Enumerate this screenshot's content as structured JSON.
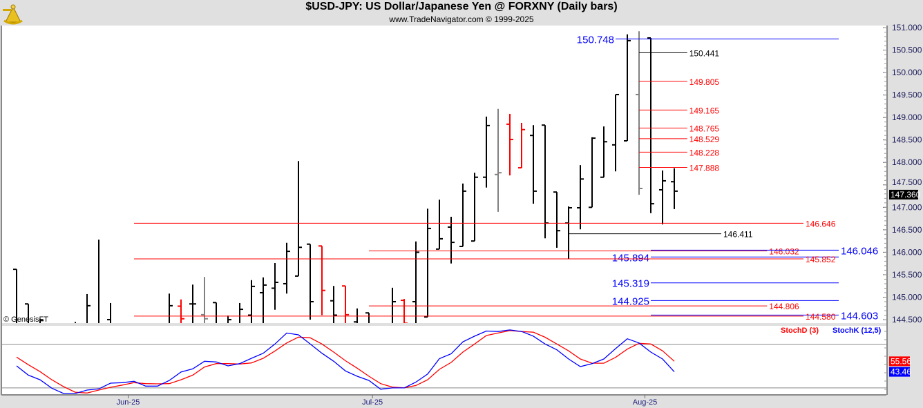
{
  "header": {
    "title": "$USD-JPY:  US Dollar/Japanese Yen @ FORXNY  (Daily bars)",
    "subtitle": "www.TradeNavigator.com © 1999-2025",
    "logo_text": "Trade Navigator"
  },
  "copyright": "© GenesisFT",
  "colors": {
    "red": "#ff0000",
    "blue": "#0000ff",
    "black": "#000000",
    "gray": "#808080"
  },
  "chart_data": {
    "type": "bar",
    "title": "$USD-JPY:  US Dollar/Japanese Yen @ FORXNY  (Daily bars)",
    "ylim": [
      144.42,
      151.05
    ],
    "y_ticks": [
      "151.000",
      "150.500",
      "150.000",
      "149.500",
      "149.000",
      "148.500",
      "148.000",
      "147.500",
      "147.000",
      "146.500",
      "146.000",
      "145.500",
      "145.000",
      "144.500"
    ],
    "last_price": "147.360",
    "x_labels": [
      {
        "label": "Jun-25",
        "bar": 9.5
      },
      {
        "label": "Jul-25",
        "bar": 30.3
      },
      {
        "label": "Aug-25",
        "bar": 53.5
      }
    ],
    "bars": [
      {
        "o": 145.62,
        "h": 145.62,
        "l": 144.0,
        "c": 144.3,
        "col": "black"
      },
      {
        "o": 144.85,
        "h": 144.85,
        "l": 143.9,
        "c": 144.2,
        "col": "black"
      },
      {
        "o": 144.3,
        "h": 144.52,
        "l": 144.0,
        "c": 144.48,
        "col": "black"
      },
      {
        "o": 144.0,
        "h": 144.3,
        "l": 143.6,
        "c": 143.8,
        "col": "black"
      },
      {
        "o": 143.8,
        "h": 144.2,
        "l": 143.5,
        "c": 144.1,
        "col": "black"
      },
      {
        "o": 144.0,
        "h": 144.45,
        "l": 143.8,
        "c": 144.3,
        "col": "black"
      },
      {
        "o": 144.2,
        "h": 145.07,
        "l": 144.0,
        "c": 144.81,
        "col": "black"
      },
      {
        "o": 144.3,
        "h": 146.28,
        "l": 144.0,
        "c": 144.2,
        "col": "black"
      },
      {
        "o": 144.5,
        "h": 144.87,
        "l": 143.9,
        "c": 144.1,
        "col": "black"
      },
      {
        "o": 144.0,
        "h": 144.3,
        "l": 143.6,
        "c": 143.9,
        "col": "black"
      },
      {
        "o": 143.8,
        "h": 144.2,
        "l": 143.4,
        "c": 144.0,
        "col": "black"
      },
      {
        "o": 143.9,
        "h": 144.3,
        "l": 143.6,
        "c": 144.1,
        "col": "black"
      },
      {
        "o": 144.1,
        "h": 144.35,
        "l": 143.7,
        "c": 144.2,
        "col": "black"
      },
      {
        "o": 144.2,
        "h": 145.08,
        "l": 144.0,
        "c": 144.81,
        "col": "black"
      },
      {
        "o": 144.8,
        "h": 144.95,
        "l": 144.1,
        "c": 144.52,
        "col": "red"
      },
      {
        "o": 144.85,
        "h": 145.28,
        "l": 144.2,
        "c": 144.85,
        "col": "black"
      },
      {
        "o": 144.61,
        "h": 145.45,
        "l": 144.2,
        "c": 144.52,
        "col": "gray"
      },
      {
        "o": 144.88,
        "h": 144.88,
        "l": 144.0,
        "c": 144.4,
        "col": "black"
      },
      {
        "o": 144.3,
        "h": 144.59,
        "l": 144.0,
        "c": 144.5,
        "col": "black"
      },
      {
        "o": 144.3,
        "h": 144.87,
        "l": 144.1,
        "c": 144.73,
        "col": "black"
      },
      {
        "o": 144.6,
        "h": 145.38,
        "l": 144.3,
        "c": 145.24,
        "col": "black"
      },
      {
        "o": 145.1,
        "h": 145.44,
        "l": 144.4,
        "c": 145.27,
        "col": "black"
      },
      {
        "o": 145.2,
        "h": 145.76,
        "l": 144.72,
        "c": 145.33,
        "col": "black"
      },
      {
        "o": 145.3,
        "h": 146.21,
        "l": 145.08,
        "c": 146.02,
        "col": "black"
      },
      {
        "o": 145.47,
        "h": 148.03,
        "l": 145.47,
        "c": 146.11,
        "col": "black"
      },
      {
        "o": 146.18,
        "h": 146.18,
        "l": 144.5,
        "c": 144.9,
        "col": "black"
      },
      {
        "o": 146.14,
        "h": 146.14,
        "l": 144.6,
        "c": 145.15,
        "col": "red"
      },
      {
        "o": 144.92,
        "h": 145.25,
        "l": 144.2,
        "c": 144.6,
        "col": "black"
      },
      {
        "o": 145.25,
        "h": 145.25,
        "l": 144.2,
        "c": 144.61,
        "col": "red"
      },
      {
        "o": 144.45,
        "h": 144.75,
        "l": 144.2,
        "c": 144.3,
        "col": "black"
      },
      {
        "o": 144.65,
        "h": 144.65,
        "l": 144.1,
        "c": 144.4,
        "col": "black"
      },
      {
        "o": 144.0,
        "h": 144.3,
        "l": 143.7,
        "c": 144.2,
        "col": "black"
      },
      {
        "o": 144.4,
        "h": 145.21,
        "l": 144.0,
        "c": 144.9,
        "col": "black"
      },
      {
        "o": 144.93,
        "h": 144.96,
        "l": 144.4,
        "c": 144.42,
        "col": "red"
      },
      {
        "o": 144.9,
        "h": 146.24,
        "l": 144.2,
        "c": 146.0,
        "col": "black"
      },
      {
        "o": 144.56,
        "h": 146.97,
        "l": 144.56,
        "c": 146.53,
        "col": "black"
      },
      {
        "o": 146.07,
        "h": 147.17,
        "l": 146.07,
        "c": 146.3,
        "col": "black"
      },
      {
        "o": 146.56,
        "h": 146.79,
        "l": 145.75,
        "c": 146.22,
        "col": "black"
      },
      {
        "o": 146.13,
        "h": 147.53,
        "l": 146.13,
        "c": 147.36,
        "col": "black"
      },
      {
        "o": 146.25,
        "h": 147.77,
        "l": 146.25,
        "c": 147.67,
        "col": "black"
      },
      {
        "o": 147.67,
        "h": 149.02,
        "l": 147.44,
        "c": 148.82,
        "col": "black"
      },
      {
        "o": 147.73,
        "h": 149.19,
        "l": 146.9,
        "c": 147.77,
        "col": "gray"
      },
      {
        "o": 148.85,
        "h": 149.08,
        "l": 147.71,
        "c": 148.51,
        "col": "red"
      },
      {
        "o": 147.88,
        "h": 148.88,
        "l": 147.88,
        "c": 148.73,
        "col": "red"
      },
      {
        "o": 148.6,
        "h": 148.83,
        "l": 147.08,
        "c": 147.36,
        "col": "black"
      },
      {
        "o": 148.83,
        "h": 148.83,
        "l": 146.31,
        "c": 146.65,
        "col": "black"
      },
      {
        "o": 147.34,
        "h": 147.34,
        "l": 146.1,
        "c": 146.48,
        "col": "black"
      },
      {
        "o": 146.65,
        "h": 147.02,
        "l": 145.85,
        "c": 146.99,
        "col": "black"
      },
      {
        "o": 146.99,
        "h": 147.94,
        "l": 146.51,
        "c": 147.63,
        "col": "black"
      },
      {
        "o": 147.0,
        "h": 148.56,
        "l": 147.0,
        "c": 148.54,
        "col": "black"
      },
      {
        "o": 147.67,
        "h": 148.8,
        "l": 147.67,
        "c": 148.46,
        "col": "black"
      },
      {
        "o": 148.39,
        "h": 149.51,
        "l": 147.8,
        "c": 149.51,
        "col": "black"
      },
      {
        "o": 148.48,
        "h": 150.85,
        "l": 148.48,
        "c": 150.71,
        "col": "black"
      },
      {
        "o": 149.51,
        "h": 150.92,
        "l": 147.28,
        "c": 147.42,
        "col": "gray"
      },
      {
        "o": 150.77,
        "h": 150.77,
        "l": 146.87,
        "c": 147.08,
        "col": "black"
      },
      {
        "o": 147.39,
        "h": 147.82,
        "l": 146.62,
        "c": 147.59,
        "col": "black"
      },
      {
        "o": 147.57,
        "h": 147.87,
        "l": 146.96,
        "c": 147.36,
        "col": "black"
      }
    ],
    "levels": [
      {
        "label": "150.748",
        "price": 150.748,
        "col": "blue",
        "from_bar": 51,
        "to_bar": 70,
        "side": "left",
        "size": "large"
      },
      {
        "label": "150.441",
        "price": 150.441,
        "col": "black",
        "from_bar": 53,
        "to_bar": 57.1,
        "side": "right",
        "size": "small"
      },
      {
        "label": "149.805",
        "price": 149.805,
        "col": "red",
        "from_bar": 53,
        "to_bar": 57.1,
        "side": "right",
        "size": "small"
      },
      {
        "label": "149.165",
        "price": 149.165,
        "col": "red",
        "from_bar": 53,
        "to_bar": 57.1,
        "side": "right",
        "size": "small"
      },
      {
        "label": "148.765",
        "price": 148.765,
        "col": "red",
        "from_bar": 53,
        "to_bar": 57.1,
        "side": "right",
        "size": "small"
      },
      {
        "label": "148.529",
        "price": 148.529,
        "col": "red",
        "from_bar": 53,
        "to_bar": 57.1,
        "side": "right",
        "size": "small"
      },
      {
        "label": "148.228",
        "price": 148.228,
        "col": "red",
        "from_bar": 53,
        "to_bar": 57.1,
        "side": "right",
        "size": "small"
      },
      {
        "label": "147.888",
        "price": 147.888,
        "col": "red",
        "from_bar": 53,
        "to_bar": 57.1,
        "side": "right",
        "size": "small"
      },
      {
        "label": "146.646",
        "price": 146.646,
        "col": "red",
        "from_bar": 10,
        "to_bar": 67,
        "side": "right",
        "size": "small"
      },
      {
        "label": "146.411",
        "price": 146.411,
        "col": "black",
        "from_bar": 47,
        "to_bar": 60,
        "side": "right",
        "size": "small"
      },
      {
        "label": "146.032",
        "price": 146.032,
        "col": "red",
        "from_bar": 30,
        "to_bar": 63.9,
        "side": "right",
        "size": "small"
      },
      {
        "label": "146.046",
        "price": 146.046,
        "col": "blue",
        "from_bar": 54,
        "to_bar": 70,
        "side": "right",
        "size": "large"
      },
      {
        "label": "145.894",
        "price": 145.894,
        "col": "blue",
        "from_bar": 54,
        "to_bar": 70,
        "side": "left",
        "size": "large"
      },
      {
        "label": "145.852",
        "price": 145.852,
        "col": "red",
        "from_bar": 10,
        "to_bar": 67,
        "side": "right",
        "size": "small"
      },
      {
        "label": "145.319",
        "price": 145.319,
        "col": "blue",
        "from_bar": 54,
        "to_bar": 70,
        "side": "left",
        "size": "large"
      },
      {
        "label": "144.925",
        "price": 144.925,
        "col": "blue",
        "from_bar": 54,
        "to_bar": 70,
        "side": "left",
        "size": "large"
      },
      {
        "label": "144.806",
        "price": 144.806,
        "col": "red",
        "from_bar": 30,
        "to_bar": 63.9,
        "side": "right",
        "size": "small"
      },
      {
        "label": "144.603",
        "price": 144.603,
        "col": "blue",
        "from_bar": 54,
        "to_bar": 70,
        "side": "right",
        "size": "large"
      },
      {
        "label": "144.580",
        "price": 144.58,
        "col": "red",
        "from_bar": 10,
        "to_bar": 67,
        "side": "right",
        "size": "small"
      }
    ],
    "stochastic": {
      "ylim": [
        17,
        96
      ],
      "guide_lines": [
        75,
        25
      ],
      "series": [
        {
          "name": "StochD (3)",
          "col": "red",
          "last": "55.56",
          "values": [
            60.3,
            51.6,
            43.7,
            34.4,
            26.5,
            20.0,
            19.2,
            22.6,
            25.7,
            28.3,
            31.0,
            29.9,
            29.7,
            29.9,
            34.4,
            39.7,
            49.0,
            52.9,
            52.9,
            52.4,
            53.7,
            59.0,
            67.4,
            76.6,
            83.3,
            82.5,
            75.4,
            66.1,
            56.2,
            47.7,
            38.4,
            29.9,
            25.9,
            25.1,
            27.8,
            34.4,
            46.3,
            54.2,
            66.1,
            75.4,
            85.1,
            88.0,
            90.7,
            89.7,
            88.9,
            83.1,
            75.4,
            67.5,
            58.2,
            53.4,
            53.4,
            60.0,
            69.5,
            76.2,
            75.4,
            67.5,
            55.56
          ]
        },
        {
          "name": "StochK (12,5)",
          "col": "blue",
          "last": "43.46",
          "values": [
            50.3,
            39.7,
            34.4,
            24.7,
            18.6,
            18.6,
            22.6,
            23.9,
            30.5,
            31.0,
            32.6,
            27.1,
            27.1,
            33.6,
            43.2,
            46.9,
            55.6,
            54.8,
            50.3,
            52.9,
            59.0,
            64.8,
            75.4,
            88.0,
            85.9,
            75.4,
            64.8,
            55.6,
            44.5,
            38.4,
            33.6,
            23.5,
            25.0,
            25.0,
            31.7,
            40.9,
            58.6,
            64.1,
            77.8,
            84.4,
            90.3,
            89.7,
            91.5,
            89.7,
            84.4,
            75.4,
            68.7,
            58.2,
            49.5,
            52.9,
            58.2,
            70.1,
            81.4,
            76.6,
            66.1,
            58.2,
            43.46
          ]
        }
      ]
    }
  }
}
